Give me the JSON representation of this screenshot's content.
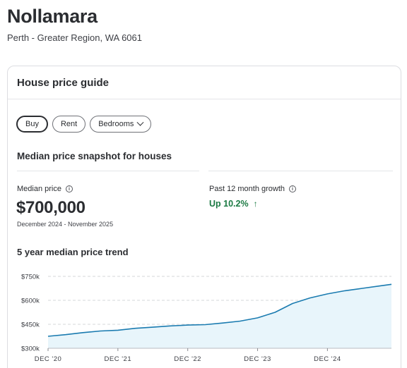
{
  "suburb": {
    "name": "Nollamara",
    "location": "Perth - Greater Region, WA 6061"
  },
  "card": {
    "title": "House price guide",
    "filters": {
      "buy": "Buy",
      "rent": "Rent",
      "bedrooms": "Bedrooms"
    },
    "snapshot_title": "Median price snapshot for houses",
    "median": {
      "label": "Median price",
      "value": "$700,000",
      "period": "December 2024 - November 2025"
    },
    "growth": {
      "label": "Past 12 month growth",
      "value": "Up 10.2%"
    },
    "trend_title": "5 year median price trend"
  },
  "colors": {
    "accent_line": "#1a7bb0",
    "area_fill": "#e8f5fb",
    "positive": "#1b7a43"
  },
  "chart_data": {
    "type": "area",
    "title": "5 year median price trend",
    "xlabel": "",
    "ylabel": "",
    "y_ticks": [
      "$750k",
      "$600k",
      "$450k",
      "$300k"
    ],
    "y_tick_values": [
      750000,
      600000,
      450000,
      300000
    ],
    "x_ticks": [
      "DEC '20",
      "DEC '21",
      "DEC '22",
      "DEC '23",
      "DEC '24"
    ],
    "ylim": [
      300000,
      750000
    ],
    "grid": true,
    "x": [
      "2020-12",
      "2021-03",
      "2021-06",
      "2021-09",
      "2021-12",
      "2022-03",
      "2022-06",
      "2022-09",
      "2022-12",
      "2023-03",
      "2023-06",
      "2023-09",
      "2023-12",
      "2024-03",
      "2024-06",
      "2024-09",
      "2024-12",
      "2025-03",
      "2025-06",
      "2025-09",
      "2025-11"
    ],
    "values": [
      375000,
      385000,
      398000,
      408000,
      413000,
      425000,
      432000,
      440000,
      445000,
      448000,
      458000,
      470000,
      490000,
      525000,
      580000,
      615000,
      640000,
      660000,
      675000,
      690000,
      700000
    ]
  }
}
